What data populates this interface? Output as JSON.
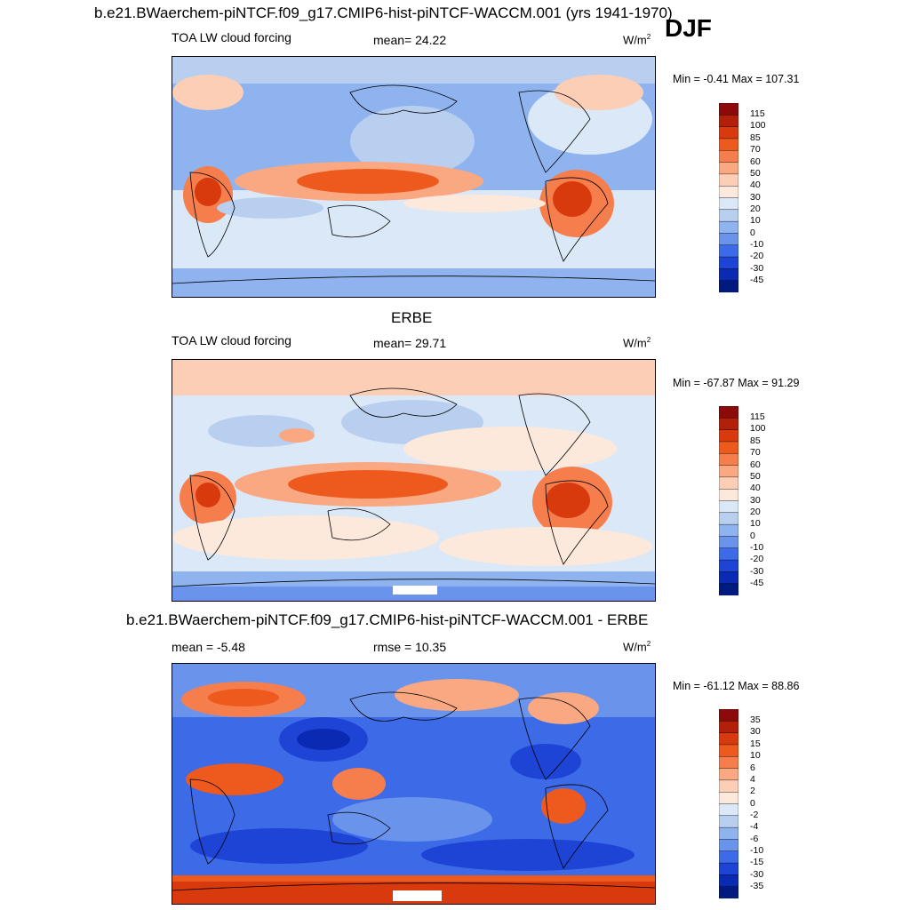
{
  "main_title": "b.e21.BWaerchem-piNTCF.f09_g17.CMIP6-hist-piNTCF-WACCM.001 (yrs 1941-1970)",
  "season": "DJF",
  "panels": [
    {
      "title": "",
      "field": "TOA LW cloud forcing",
      "stat_label": "mean=  24.22",
      "units": "W/m",
      "units_sup": "2",
      "minmax": "Min =  -0.41 Max = 107.31",
      "levels": [
        "115",
        "100",
        "85",
        "70",
        "60",
        "50",
        "40",
        "30",
        "20",
        "10",
        "0",
        "-10",
        "-20",
        "-30",
        "-45"
      ]
    },
    {
      "title": "ERBE",
      "field": "TOA LW cloud forcing",
      "stat_label": "mean=  29.71",
      "units": "W/m",
      "units_sup": "2",
      "minmax": "Min = -67.87 Max =  91.29",
      "levels": [
        "115",
        "100",
        "85",
        "70",
        "60",
        "50",
        "40",
        "30",
        "20",
        "10",
        "0",
        "-10",
        "-20",
        "-30",
        "-45"
      ]
    },
    {
      "title": "b.e21.BWaerchem-piNTCF.f09_g17.CMIP6-hist-piNTCF-WACCM.001 - ERBE",
      "field": "mean =  -5.48",
      "stat_label": "rmse =  10.35",
      "units": "W/m",
      "units_sup": "2",
      "minmax": "Min = -61.12 Max =  88.86",
      "levels": [
        "35",
        "30",
        "15",
        "10",
        "6",
        "4",
        "2",
        "0",
        "-2",
        "-4",
        "-6",
        "-10",
        "-15",
        "-30",
        "-35"
      ]
    }
  ],
  "colors": {
    "colorbar": [
      "#8c0a0a",
      "#b3200a",
      "#d83a0e",
      "#ee5a1e",
      "#f57e4c",
      "#f9a882",
      "#fcceb6",
      "#fde9dc",
      "#dbe8f7",
      "#b8cff0",
      "#8fb3ee",
      "#6a93ec",
      "#3d6be8",
      "#1e44d6",
      "#0a2ab4",
      "#001a80"
    ]
  },
  "chart_data": [
    {
      "type": "heatmap",
      "title": "TOA LW cloud forcing",
      "mean": 24.22,
      "min": -0.41,
      "max": 107.31,
      "units": "W/m2",
      "contour_levels": [
        -45,
        -30,
        -20,
        -10,
        0,
        10,
        20,
        30,
        40,
        50,
        60,
        70,
        85,
        100,
        115
      ]
    },
    {
      "type": "heatmap",
      "title": "ERBE",
      "mean": 29.71,
      "min": -67.87,
      "max": 91.29,
      "units": "W/m2",
      "contour_levels": [
        -45,
        -30,
        -20,
        -10,
        0,
        10,
        20,
        30,
        40,
        50,
        60,
        70,
        85,
        100,
        115
      ]
    },
    {
      "type": "heatmap",
      "title": "b.e21.BWaerchem-piNTCF.f09_g17.CMIP6-hist-piNTCF-WACCM.001 - ERBE",
      "mean": -5.48,
      "rmse": 10.35,
      "min": -61.12,
      "max": 88.86,
      "units": "W/m2",
      "contour_levels": [
        -35,
        -30,
        -15,
        -10,
        -6,
        -4,
        -2,
        0,
        2,
        4,
        6,
        10,
        15,
        30,
        35
      ]
    }
  ]
}
